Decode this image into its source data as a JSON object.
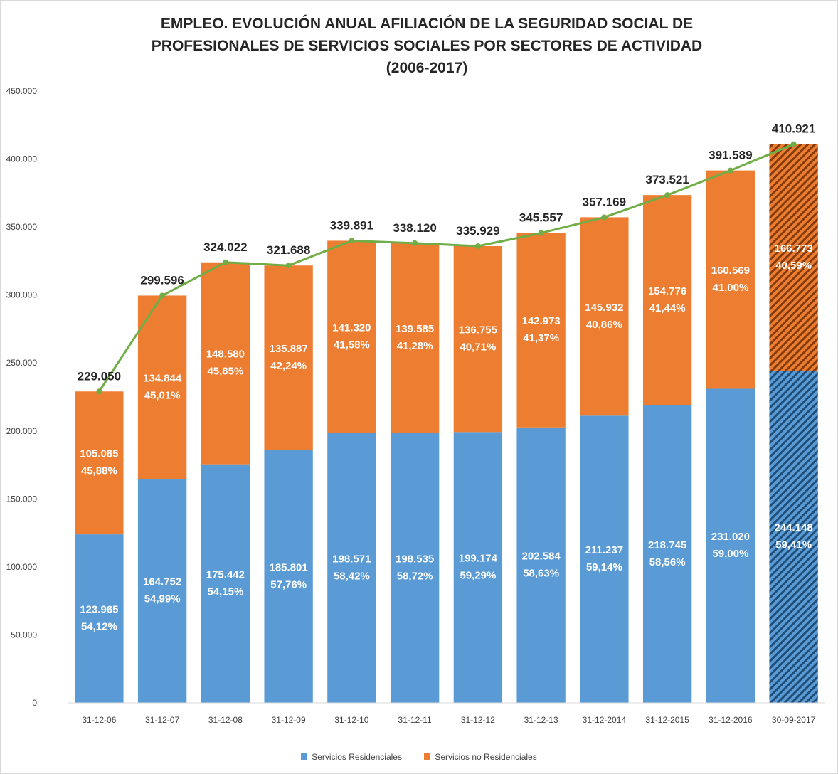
{
  "chart_data": {
    "type": "bar",
    "stacked": true,
    "title": "EMPLEO. EVOLUCIÓN ANUAL AFILIACIÓN DE LA SEGURIDAD SOCIAL DE PROFESIONALES DE SERVICIOS SOCIALES POR SECTORES DE ACTIVIDAD (2006-2017)",
    "title_lines": [
      "EMPLEO. EVOLUCIÓN ANUAL AFILIACIÓN DE LA SEGURIDAD SOCIAL DE",
      "PROFESIONALES DE SERVICIOS SOCIALES POR SECTORES DE ACTIVIDAD",
      "(2006-2017)"
    ],
    "xlabel": "",
    "ylabel": "",
    "ylim": [
      0,
      450000
    ],
    "y_ticks": [
      0,
      50000,
      100000,
      150000,
      200000,
      250000,
      300000,
      350000,
      400000,
      450000
    ],
    "y_tick_labels": [
      "0",
      "50.000",
      "100.000",
      "150.000",
      "200.000",
      "250.000",
      "300.000",
      "350.000",
      "400.000",
      "450.000"
    ],
    "grid": false,
    "legend_position": "bottom",
    "categories": [
      "31-12-06",
      "31-12-07",
      "31-12-08",
      "31-12-09",
      "31-12-10",
      "31-12-11",
      "31-12-12",
      "31-12-13",
      "31-12-2014",
      "31-12-2015",
      "31-12-2016",
      "30-09-2017"
    ],
    "series": [
      {
        "name": "Servicios Residenciales",
        "color": "#5b9bd5",
        "values": [
          123965,
          164752,
          175442,
          185801,
          198571,
          198535,
          199174,
          202584,
          211237,
          218745,
          231020,
          244148
        ],
        "value_labels": [
          "123.965",
          "164.752",
          "175.442",
          "185.801",
          "198.571",
          "198.535",
          "199.174",
          "202.584",
          "211.237",
          "218.745",
          "231.020",
          "244.148"
        ],
        "percent_labels": [
          "54,12%",
          "54,99%",
          "54,15%",
          "57,76%",
          "58,42%",
          "58,72%",
          "59,29%",
          "58,63%",
          "59,14%",
          "58,56%",
          "59,00%",
          "59,41%"
        ]
      },
      {
        "name": "Servicios no Residenciales",
        "color": "#ed7d31",
        "values": [
          105085,
          134844,
          148580,
          135887,
          141320,
          139585,
          136755,
          142973,
          145932,
          154776,
          160569,
          166773
        ],
        "value_labels": [
          "105.085",
          "134.844",
          "148.580",
          "135.887",
          "141.320",
          "139.585",
          "136.755",
          "142.973",
          "145.932",
          "154.776",
          "160.569",
          "166.773"
        ],
        "percent_labels": [
          "45,88%",
          "45,01%",
          "45,85%",
          "42,24%",
          "41,58%",
          "41,28%",
          "40,71%",
          "41,37%",
          "40,86%",
          "41,44%",
          "41,00%",
          "40,59%"
        ]
      }
    ],
    "totals": {
      "color": "#70ad47",
      "values": [
        229050,
        299596,
        324022,
        321688,
        339891,
        338120,
        335929,
        345557,
        357169,
        373521,
        391589,
        410921
      ],
      "labels": [
        "229.050",
        "299.596",
        "324.022",
        "321.688",
        "339.891",
        "338.120",
        "335.929",
        "345.557",
        "357.169",
        "373.521",
        "391.589",
        "410.921"
      ]
    },
    "hatched_last_category": true,
    "hatched_colors": {
      "Servicios Residenciales": "#1f4e79",
      "Servicios no Residenciales": "#843c0c"
    }
  }
}
